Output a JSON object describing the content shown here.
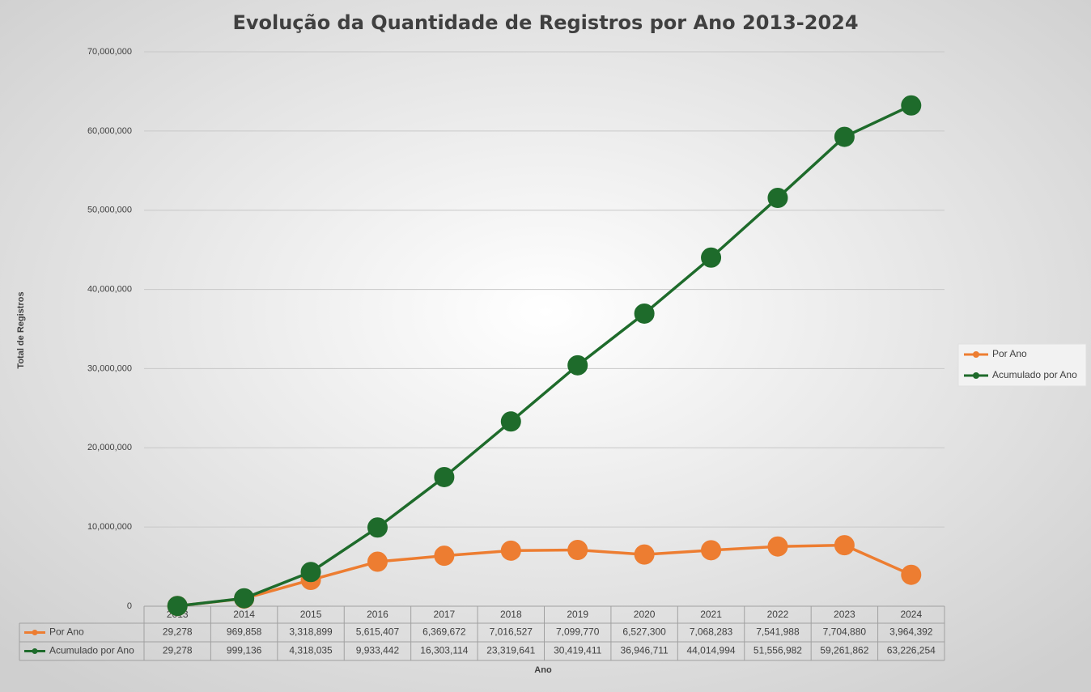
{
  "chart_data": {
    "type": "line",
    "title": "Evolução da Quantidade de Registros por Ano 2013-2024",
    "x_label": "Ano",
    "y_label": "Total de Registros",
    "categories": [
      "2013",
      "2014",
      "2015",
      "2016",
      "2017",
      "2018",
      "2019",
      "2020",
      "2021",
      "2022",
      "2023",
      "2024"
    ],
    "series": [
      {
        "name": "Por Ano",
        "color": "#ED7D31",
        "values": [
          29278,
          969858,
          3318899,
          5615407,
          6369672,
          7016527,
          7099770,
          6527300,
          7068283,
          7541988,
          7704880,
          3964392
        ],
        "value_labels": [
          "29,278",
          "969,858",
          "3,318,899",
          "5,615,407",
          "6,369,672",
          "7,016,527",
          "7,099,770",
          "6,527,300",
          "7,068,283",
          "7,541,988",
          "7,704,880",
          "3,964,392"
        ]
      },
      {
        "name": "Acumulado por Ano",
        "color": "#1E6B2B",
        "values": [
          29278,
          999136,
          4318035,
          9933442,
          16303114,
          23319641,
          30419411,
          36946711,
          44014994,
          51556982,
          59261862,
          63226254
        ],
        "value_labels": [
          "29,278",
          "999,136",
          "4,318,035",
          "9,933,442",
          "16,303,114",
          "23,319,641",
          "30,419,411",
          "36,946,711",
          "44,014,994",
          "51,556,982",
          "59,261,862",
          "63,226,254"
        ]
      }
    ],
    "ylim": [
      0,
      70000000
    ],
    "yticks": [
      0,
      {
        "value": 10000000,
        "label": "10,000,000"
      },
      {
        "value": 20000000,
        "label": "20,000,000"
      },
      {
        "value": 30000000,
        "label": "30,000,000"
      },
      {
        "value": 40000000,
        "label": "40,000,000"
      },
      {
        "value": 50000000,
        "label": "50,000,000"
      },
      {
        "value": 60000000,
        "label": "60,000,000"
      },
      {
        "value": 70000000,
        "label": "70,000,000"
      }
    ],
    "grid": true,
    "legend": "right"
  }
}
